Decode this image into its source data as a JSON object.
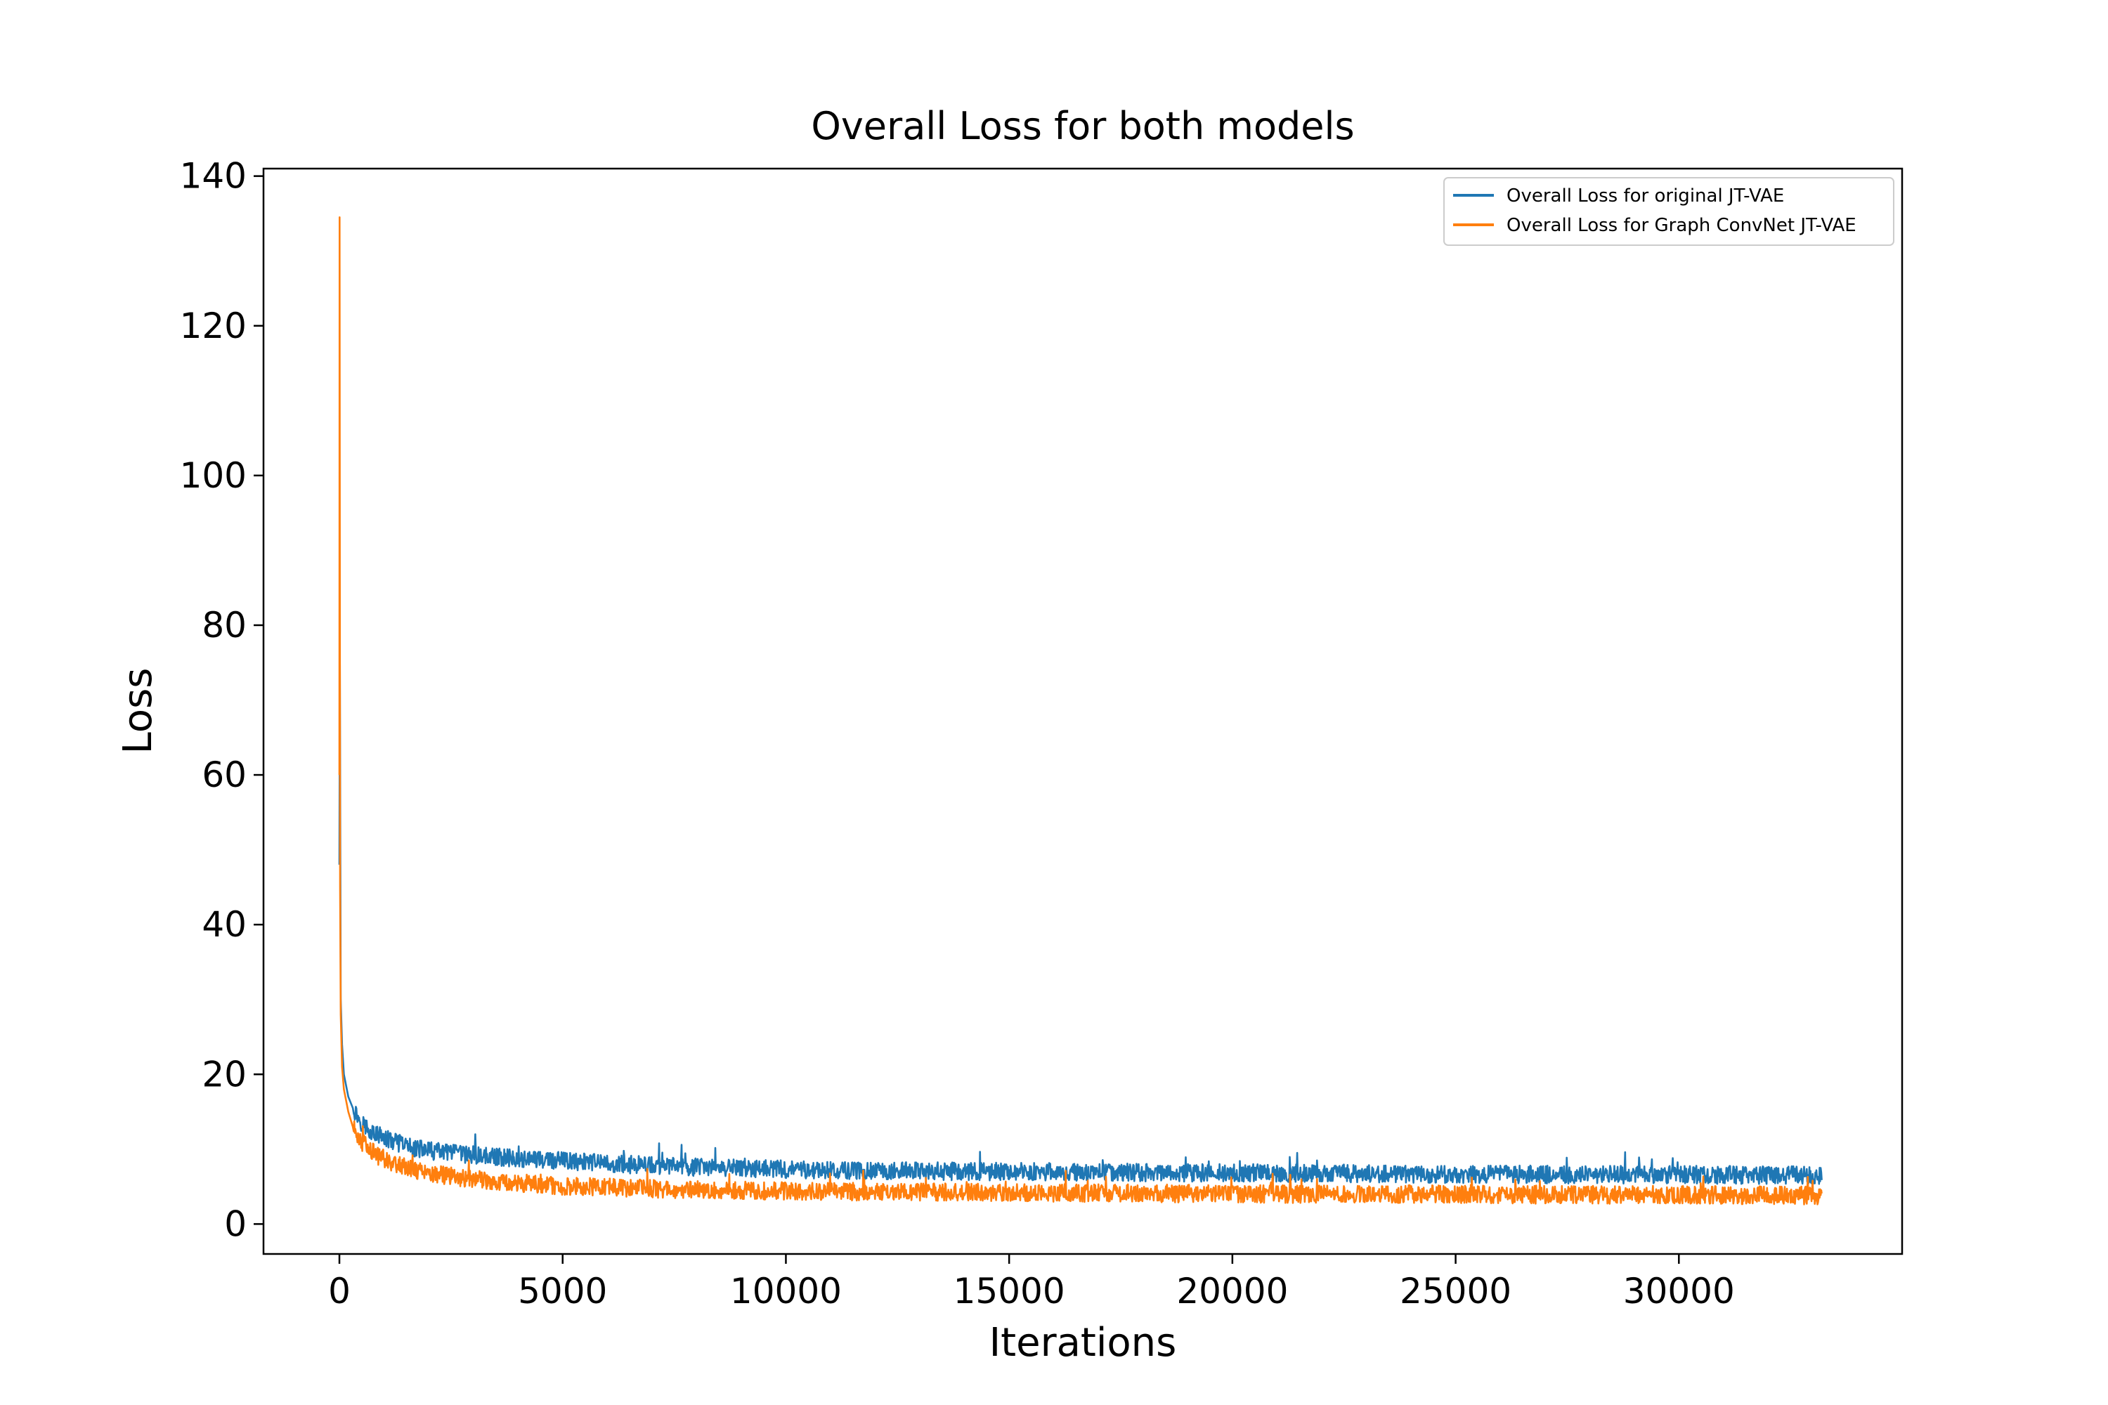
{
  "chart_data": {
    "type": "line",
    "title": "Overall Loss for both models",
    "xlabel": "Iterations",
    "ylabel": "Loss",
    "xlim": [
      -1700,
      35000
    ],
    "ylim": [
      -4,
      141
    ],
    "xticks": [
      0,
      5000,
      10000,
      15000,
      20000,
      25000,
      30000
    ],
    "yticks": [
      0,
      20,
      40,
      60,
      80,
      100,
      120,
      140
    ],
    "grid": false,
    "legend_position": "top-right",
    "series": [
      {
        "name": "Overall Loss for original JT-VAE",
        "color": "#1f77b4",
        "x": [
          0,
          10,
          30,
          60,
          100,
          200,
          300,
          500,
          800,
          1200,
          1600,
          2000,
          3000,
          4000,
          5000,
          6000,
          7000,
          8000,
          10000,
          12000,
          15000,
          18000,
          21000,
          24000,
          27000,
          30000,
          33200
        ],
        "y": [
          48,
          75,
          30,
          24,
          20,
          17,
          15.5,
          13.5,
          12,
          11,
          10.3,
          9.8,
          9.2,
          8.8,
          8.4,
          8.1,
          7.8,
          7.6,
          7.3,
          7.1,
          7.0,
          6.9,
          6.8,
          6.7,
          6.6,
          6.6,
          6.5
        ],
        "noise": 1.2
      },
      {
        "name": "Overall Loss for Graph ConvNet JT-VAE",
        "color": "#ff7f0e",
        "x": [
          0,
          5,
          15,
          30,
          60,
          100,
          200,
          300,
          500,
          800,
          1200,
          1600,
          2000,
          3000,
          4000,
          5000,
          6000,
          7000,
          8000,
          10000,
          12000,
          15000,
          18000,
          21000,
          24000,
          27000,
          30000,
          33200
        ],
        "y": [
          60,
          134.5,
          45,
          28,
          21,
          18,
          15,
          13,
          11,
          9.3,
          8.2,
          7.4,
          6.8,
          6.0,
          5.5,
          5.1,
          4.9,
          4.7,
          4.6,
          4.4,
          4.3,
          4.2,
          4.1,
          4.0,
          4.0,
          3.9,
          3.9,
          3.8
        ],
        "noise": 1.2
      }
    ]
  }
}
